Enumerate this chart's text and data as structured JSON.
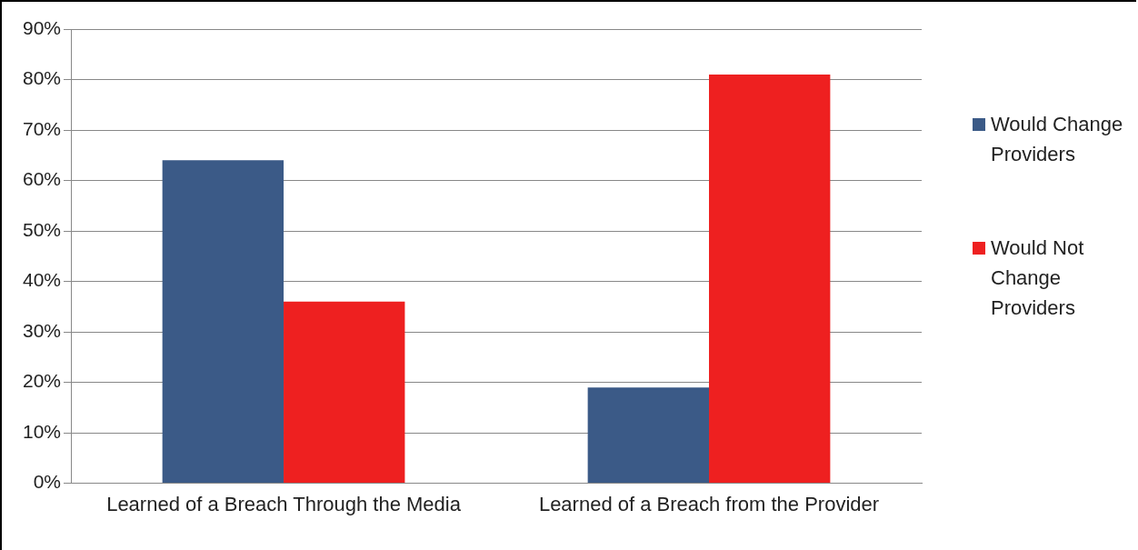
{
  "chart_data": {
    "type": "bar",
    "categories": [
      "Learned of a Breach Through the Media",
      "Learned of a Breach from the Provider"
    ],
    "series": [
      {
        "name": "Would Change Providers",
        "color": "#3b5a87",
        "values": [
          64,
          19
        ]
      },
      {
        "name": "Would Not Change Providers",
        "color": "#ee2020",
        "values": [
          36,
          81
        ]
      }
    ],
    "ylim": [
      0,
      90
    ],
    "yticks": [
      {
        "value": 0,
        "label": "0%"
      },
      {
        "value": 10,
        "label": "10%"
      },
      {
        "value": 20,
        "label": "20%"
      },
      {
        "value": 30,
        "label": "30%"
      },
      {
        "value": 40,
        "label": "40%"
      },
      {
        "value": 50,
        "label": "50%"
      },
      {
        "value": 60,
        "label": "60%"
      },
      {
        "value": 70,
        "label": "70%"
      },
      {
        "value": 80,
        "label": "80%"
      },
      {
        "value": 90,
        "label": "90%"
      }
    ],
    "grid": "y",
    "legend": "right"
  }
}
